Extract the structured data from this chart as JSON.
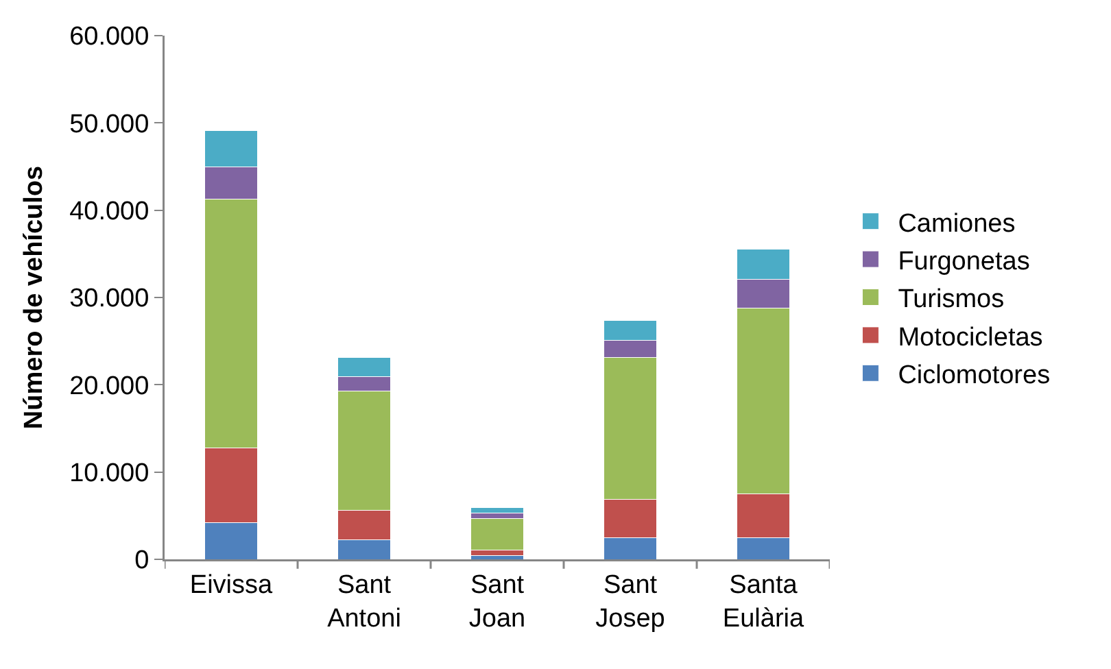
{
  "chart_data": {
    "type": "bar",
    "stacked": true,
    "ylabel": "Número de vehículos",
    "categories": [
      "Eivissa",
      "Sant Antoni",
      "Sant Joan",
      "Sant Josep",
      "Santa Eulària"
    ],
    "series": [
      {
        "name": "Ciclomotores",
        "color": "#4f81bd",
        "values": [
          4200,
          2200,
          400,
          2500,
          2500
        ]
      },
      {
        "name": "Motocicletas",
        "color": "#c0504d",
        "values": [
          8600,
          3400,
          700,
          4400,
          5000
        ]
      },
      {
        "name": "Turismos",
        "color": "#9bbb59",
        "values": [
          28500,
          13700,
          3600,
          16200,
          21300
        ]
      },
      {
        "name": "Furgonetas",
        "color": "#8064a2",
        "values": [
          3700,
          1600,
          600,
          2000,
          3300
        ]
      },
      {
        "name": "Camiones",
        "color": "#4bacc6",
        "values": [
          4100,
          2200,
          600,
          2300,
          3400
        ]
      }
    ],
    "ylim": [
      0,
      60000
    ],
    "yticks": [
      {
        "value": 0,
        "label": "0"
      },
      {
        "value": 10000,
        "label": "10.000"
      },
      {
        "value": 20000,
        "label": "20.000"
      },
      {
        "value": 30000,
        "label": "30.000"
      },
      {
        "value": 40000,
        "label": "40.000"
      },
      {
        "value": 50000,
        "label": "50.000"
      },
      {
        "value": 60000,
        "label": "60.000"
      }
    ],
    "grid": false,
    "legend": "right"
  }
}
